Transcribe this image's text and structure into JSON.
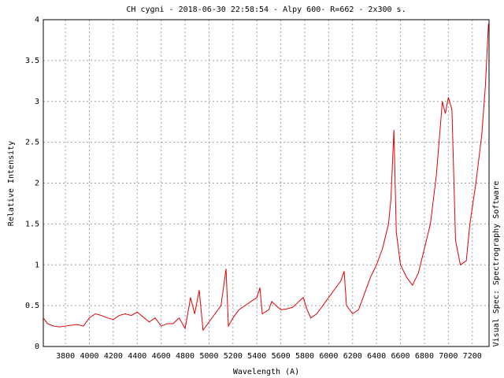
{
  "chart_data": {
    "type": "line",
    "title": "CH cygni - 2018-06-30 22:58:54 - Alpy 600- R=662 - 2x300 s.",
    "x_label": "Wavelength (A)",
    "y_label": "Relative Intensity",
    "side_text": "Visual Spec: Spectrography Software",
    "x": [
      3615,
      3650,
      3700,
      3750,
      3800,
      3850,
      3900,
      3950,
      4000,
      4050,
      4100,
      4150,
      4200,
      4250,
      4300,
      4350,
      4400,
      4450,
      4500,
      4550,
      4600,
      4650,
      4700,
      4750,
      4800,
      4846,
      4880,
      4918,
      4950,
      5000,
      5050,
      5100,
      5142,
      5162,
      5200,
      5250,
      5300,
      5350,
      5400,
      5425,
      5445,
      5500,
      5524,
      5560,
      5600,
      5650,
      5700,
      5750,
      5787,
      5820,
      5850,
      5900,
      5950,
      6000,
      6050,
      6100,
      6129,
      6149,
      6200,
      6250,
      6300,
      6350,
      6400,
      6450,
      6500,
      6520,
      6545,
      6565,
      6600,
      6650,
      6700,
      6750,
      6800,
      6850,
      6900,
      6950,
      6975,
      7000,
      7030,
      7060,
      7100,
      7150,
      7180,
      7230,
      7280,
      7310,
      7335
    ],
    "series": [
      {
        "name": "CH cygni",
        "color": "#e00000",
        "values": [
          0.35,
          0.28,
          0.25,
          0.24,
          0.25,
          0.26,
          0.27,
          0.25,
          0.35,
          0.4,
          0.38,
          0.35,
          0.33,
          0.38,
          0.4,
          0.38,
          0.42,
          0.36,
          0.3,
          0.35,
          0.25,
          0.28,
          0.28,
          0.35,
          0.22,
          0.6,
          0.4,
          0.69,
          0.2,
          0.3,
          0.4,
          0.5,
          0.95,
          0.25,
          0.35,
          0.45,
          0.5,
          0.55,
          0.6,
          0.72,
          0.4,
          0.45,
          0.55,
          0.5,
          0.45,
          0.46,
          0.48,
          0.55,
          0.6,
          0.45,
          0.35,
          0.4,
          0.5,
          0.6,
          0.7,
          0.8,
          0.92,
          0.5,
          0.4,
          0.45,
          0.65,
          0.85,
          1.0,
          1.2,
          1.5,
          1.8,
          2.65,
          1.4,
          1.0,
          0.85,
          0.75,
          0.9,
          1.2,
          1.5,
          2.1,
          3.0,
          2.85,
          3.05,
          2.9,
          1.3,
          1.0,
          1.05,
          1.5,
          2.0,
          2.6,
          3.2,
          3.95
        ]
      }
    ],
    "xlim": [
      3615,
      7340
    ],
    "ylim": [
      0,
      4
    ],
    "xticks": [
      3800,
      4000,
      4200,
      4400,
      4600,
      4800,
      5000,
      5200,
      5400,
      5600,
      5800,
      6000,
      6200,
      6400,
      6600,
      6800,
      7000,
      7200
    ],
    "yticks": [
      0,
      0.5,
      1,
      1.5,
      2,
      2.5,
      3,
      3.5,
      4
    ],
    "grid": true
  }
}
